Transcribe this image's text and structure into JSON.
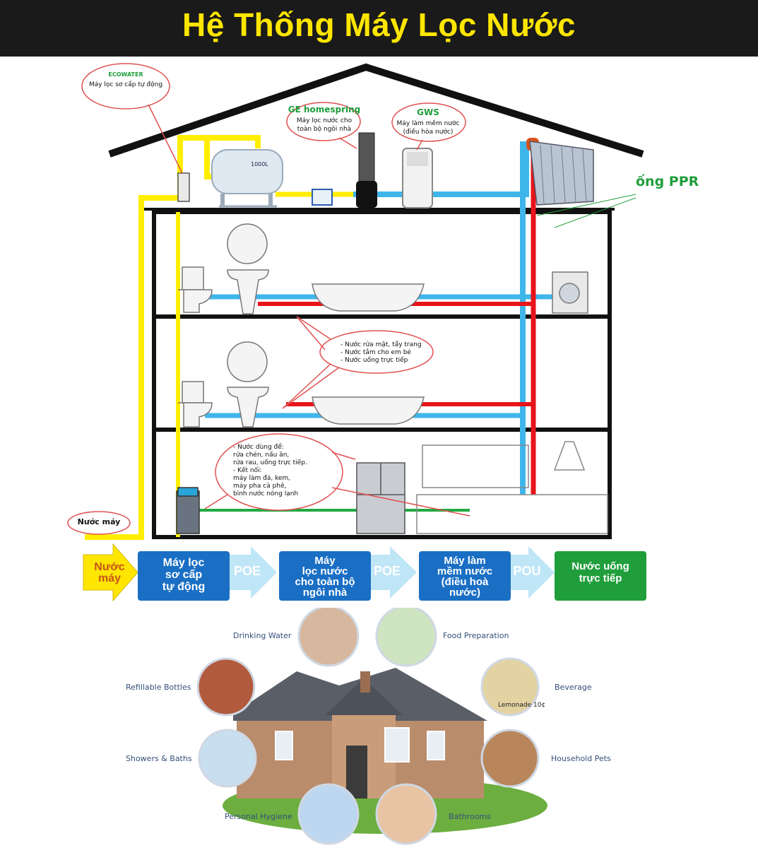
{
  "title": "Hệ Thống Máy Lọc Nước",
  "callouts": {
    "ecowater": {
      "brand": "ECOWATER",
      "text": "Máy lọc sơ cấp tự động"
    },
    "ge": {
      "brand": "GE homespring",
      "line1": "Máy lọc nước cho",
      "line2": "toàn bộ ngôi nhà"
    },
    "gws": {
      "brand": "GWS",
      "line1": "Máy làm mềm nước",
      "line2": "(điều hòa nước)"
    },
    "ppr": "ống PPR",
    "bath": [
      "- Nước rửa mặt, tẩy trang",
      "- Nước tắm cho em bé",
      "- Nước uống trực tiếp"
    ],
    "kitchen": [
      "- Nước dùng để:",
      "rửa chén, nấu ăn,",
      "rửa rau, uống trực tiếp.",
      "- Kết nối:",
      "máy làm đá, kem,",
      "máy pha cà phê,",
      "bình nước nóng lạnh"
    ],
    "tap": "Nước máy",
    "tank_label": "1000L"
  },
  "flow": {
    "start": [
      "Nước",
      "máy"
    ],
    "step1": [
      "Máy lọc",
      "sơ cấp",
      "tự động"
    ],
    "poe1": "POE",
    "step2": [
      "Máy",
      "lọc nước",
      "cho toàn bộ",
      "ngôi nhà"
    ],
    "poe2": "POE",
    "step3": [
      "Máy làm",
      "mềm nước",
      "(điều hoà",
      "nước)"
    ],
    "pou": "POU",
    "end": [
      "Nước uống",
      "trực tiếp"
    ]
  },
  "uses": {
    "drinking": "Drinking Water",
    "food": "Food Preparation",
    "refill": "Refillable Bottles",
    "beverage": "Beverage",
    "showers": "Showers & Baths",
    "pets": "Household Pets",
    "hygiene": "Personal Hygiene",
    "bathrooms": "Bathrooms",
    "lemonade": "Lemonade 10¢"
  },
  "colors": {
    "title_bg": "#1a1a1a",
    "title_fg": "#ffe600",
    "pipe_yellow": "#ffee00",
    "pipe_blue": "#3fb6ea",
    "pipe_red": "#e8141b",
    "pipe_green": "#22aa44",
    "flow_blue": "#1a6fc4",
    "flow_green": "#1f9e3b"
  }
}
